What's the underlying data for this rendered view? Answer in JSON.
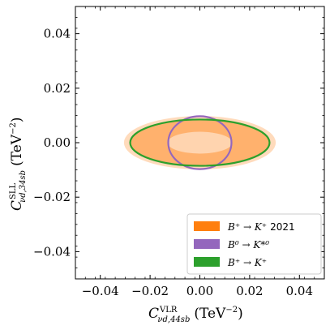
{
  "chart_data": {
    "type": "scatter",
    "xlabel": {
      "symbol": "C",
      "superscript": "VLR",
      "subscript": "νd,44sb",
      "unit": "(TeV",
      "unit_exp": "−2",
      "unit_close": ")"
    },
    "ylabel": {
      "symbol": "C",
      "superscript": "SLL",
      "subscript": "νd,34sb",
      "unit": "(TeV",
      "unit_exp": "−2",
      "unit_close": ")"
    },
    "xlim": [
      -0.05,
      0.05
    ],
    "ylim": [
      -0.05,
      0.05
    ],
    "x_ticks": [
      -0.04,
      -0.02,
      0.0,
      0.02,
      0.04
    ],
    "y_ticks": [
      -0.04,
      -0.02,
      0.0,
      0.02,
      0.04
    ],
    "x_tick_labels": [
      "−0.04",
      "−0.02",
      "0.00",
      "0.02",
      "0.04"
    ],
    "y_tick_labels": [
      "−0.04",
      "−0.02",
      "0.00",
      "0.02",
      "0.04"
    ],
    "grid": false,
    "legend_position": "lower-right",
    "series": [
      {
        "name_main": "B⁺ → K⁺",
        "name_suffix": "2021",
        "color": "#ff7f0e",
        "kind": "filled-ellipse",
        "regions": [
          {
            "cx": 0.0,
            "cy": 0.0,
            "rx": 0.0305,
            "ry": 0.0098,
            "opacity": 0.28
          },
          {
            "cx": 0.0,
            "cy": 0.0,
            "rx": 0.028,
            "ry": 0.0085,
            "opacity": 0.45
          },
          {
            "cx": 0.0,
            "cy": 0.0,
            "rx": 0.013,
            "ry": 0.004,
            "opacity": 0.0,
            "highlight": true
          }
        ]
      },
      {
        "name_main": "B⁰ → K*⁰",
        "name_suffix": "",
        "color": "#9467bd",
        "kind": "ellipse-outline",
        "regions": [
          {
            "cx": 0.0,
            "cy": 0.0,
            "rx": 0.0127,
            "ry": 0.0097
          }
        ]
      },
      {
        "name_main": "B⁺ → K⁺",
        "name_suffix": "",
        "color": "#2ca02c",
        "kind": "ellipse-outline",
        "regions": [
          {
            "cx": 0.0,
            "cy": 0.0,
            "rx": 0.028,
            "ry": 0.0085
          }
        ]
      }
    ]
  }
}
